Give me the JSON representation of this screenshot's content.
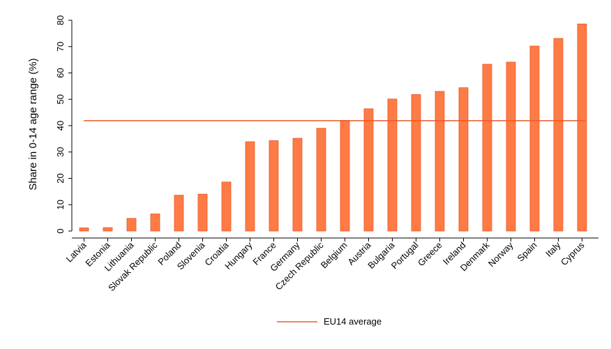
{
  "chart_data": {
    "type": "bar",
    "categories": [
      "Latvia",
      "Estonia",
      "Lithuania",
      "Slovak Republic",
      "Poland",
      "Slovenia",
      "Croatia",
      "Hungary",
      "France",
      "Germany",
      "Czech Republic",
      "Belgium",
      "Austria",
      "Bulgaria",
      "Portugal",
      "Greece",
      "Ireland",
      "Denmark",
      "Norway",
      "Spain",
      "Italy",
      "Cyprus"
    ],
    "values": [
      1.2,
      1.3,
      4.8,
      6.5,
      13.6,
      14.0,
      18.6,
      33.9,
      34.3,
      35.2,
      39.0,
      42.0,
      46.4,
      50.1,
      51.8,
      53.0,
      54.4,
      63.3,
      64.1,
      70.2,
      73.1,
      78.6
    ],
    "reference_line": {
      "name": "EU14 average",
      "value": 41.9
    },
    "title": "",
    "xlabel": "",
    "ylabel": "Share in 0-14 age range (%)",
    "ylim": [
      0,
      80
    ],
    "yticks": [
      0,
      10,
      20,
      30,
      40,
      50,
      60,
      70,
      80
    ],
    "grid": false,
    "legend": {
      "position": "bottom-center",
      "entries": [
        "EU14 average"
      ]
    },
    "colors": {
      "bar_fill": "#FF7B45",
      "bar_stroke": "#E8572A",
      "reference_line": "#EE5A2A",
      "axis": "#000000"
    }
  }
}
